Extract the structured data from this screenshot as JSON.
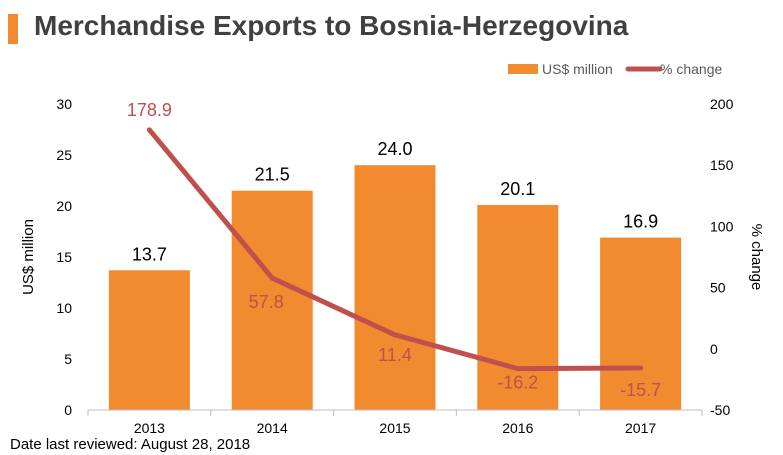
{
  "header": {
    "title": "Merchandise Exports to Bosnia-Herzegovina",
    "accent_color": "#f28a2f"
  },
  "footnote": "Date last reviewed: August 28, 2018",
  "chart_data": {
    "type": "bar",
    "title": "Merchandise Exports to Bosnia-Herzegovina",
    "categories": [
      "2013",
      "2014",
      "2015",
      "2016",
      "2017"
    ],
    "series": [
      {
        "name": "US$ million",
        "type": "bar",
        "axis": "left",
        "values": [
          13.7,
          21.5,
          24.0,
          20.1,
          16.9
        ],
        "labels": [
          "13.7",
          "21.5",
          "24.0",
          "20.1",
          "16.9"
        ],
        "color": "#f28a2f"
      },
      {
        "name": "% change",
        "type": "line",
        "axis": "right",
        "values": [
          178.9,
          57.8,
          11.4,
          -16.2,
          -15.7
        ],
        "labels": [
          "178.9",
          "57.8",
          "11.4",
          "-16.2",
          "-15.7"
        ],
        "color": "#c0504d"
      }
    ],
    "ylabel": "US$ million",
    "y2label": "% change",
    "ylim": [
      0,
      30
    ],
    "y2lim": [
      -50,
      200
    ],
    "yticks": [
      "0",
      "5",
      "10",
      "15",
      "20",
      "25",
      "30"
    ],
    "y2ticks": [
      "-50",
      "0",
      "50",
      "100",
      "150",
      "200"
    ],
    "grid": false,
    "legend_position": "top-right",
    "label_color_bar": "#000000",
    "label_color_line": "#c0504d",
    "axis_text_color": "#000000",
    "axis_line_color": "#bfbfbf"
  }
}
